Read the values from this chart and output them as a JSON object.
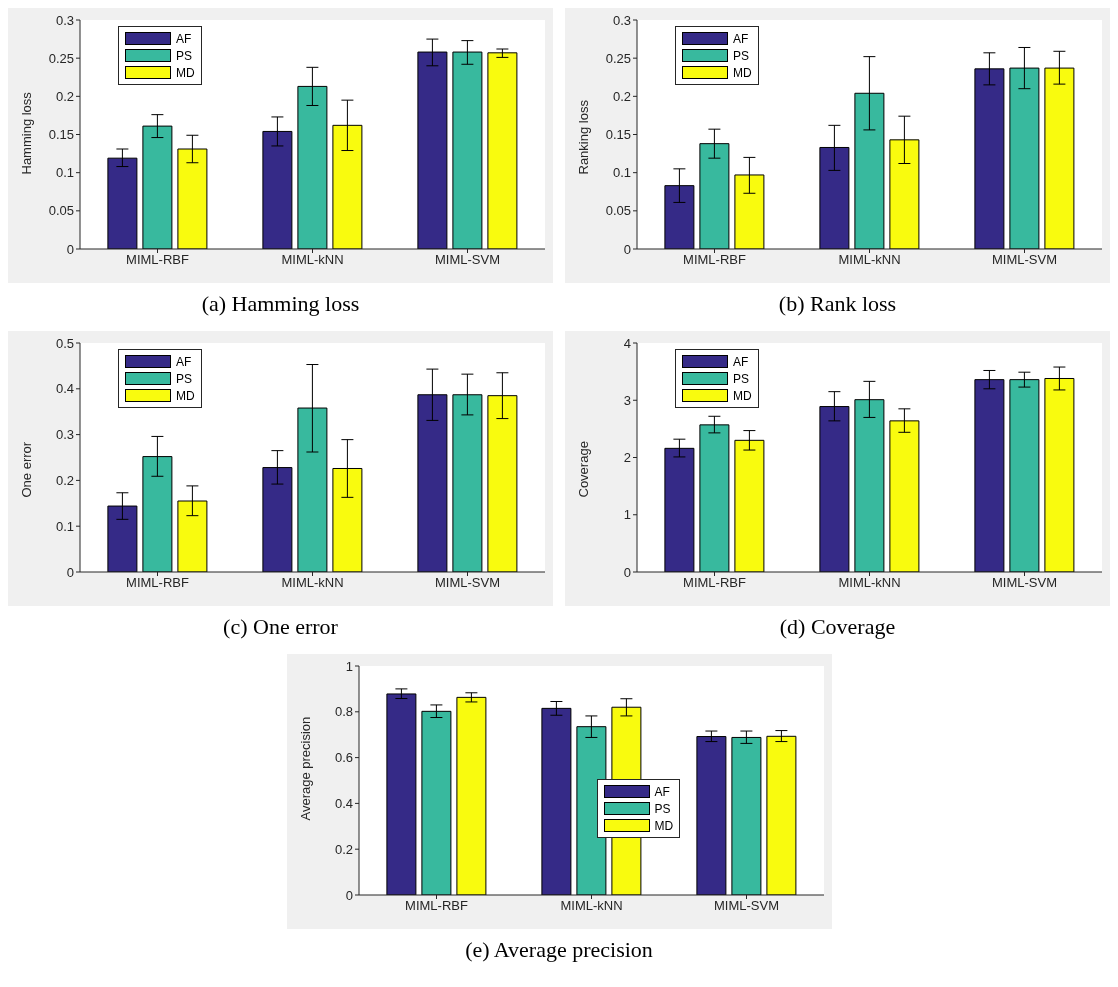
{
  "chart_data": [
    {
      "type": "bar",
      "title": "(a) Hamming loss",
      "ylabel": "Hamming loss",
      "categories": [
        "MIML-RBF",
        "MIML-kNN",
        "MIML-SVM"
      ],
      "ylim": [
        0,
        0.3
      ],
      "yticks": [
        0,
        0.05,
        0.1,
        0.15,
        0.2,
        0.25,
        0.3
      ],
      "legend": "top left",
      "series": [
        {
          "name": "AF",
          "color": "#352a87",
          "values": [
            0.119,
            0.154,
            0.258
          ],
          "errors": [
            [
              0.108,
              0.131
            ],
            [
              0.135,
              0.173
            ],
            [
              0.24,
              0.275
            ]
          ]
        },
        {
          "name": "PS",
          "color": "#38b99e",
          "values": [
            0.161,
            0.213,
            0.258
          ],
          "errors": [
            [
              0.146,
              0.176
            ],
            [
              0.188,
              0.238
            ],
            [
              0.242,
              0.273
            ]
          ]
        },
        {
          "name": "MD",
          "color": "#f9fb0e",
          "values": [
            0.131,
            0.162,
            0.257
          ],
          "errors": [
            [
              0.113,
              0.149
            ],
            [
              0.129,
              0.195
            ],
            [
              0.251,
              0.262
            ]
          ]
        }
      ]
    },
    {
      "type": "bar",
      "title": "(b) Rank loss",
      "ylabel": "Ranking loss",
      "categories": [
        "MIML-RBF",
        "MIML-kNN",
        "MIML-SVM"
      ],
      "ylim": [
        0,
        0.3
      ],
      "yticks": [
        0,
        0.05,
        0.1,
        0.15,
        0.2,
        0.25,
        0.3
      ],
      "legend": "top left",
      "series": [
        {
          "name": "AF",
          "color": "#352a87",
          "values": [
            0.083,
            0.133,
            0.236
          ],
          "errors": [
            [
              0.061,
              0.105
            ],
            [
              0.103,
              0.162
            ],
            [
              0.215,
              0.257
            ]
          ]
        },
        {
          "name": "PS",
          "color": "#38b99e",
          "values": [
            0.138,
            0.204,
            0.237
          ],
          "errors": [
            [
              0.119,
              0.157
            ],
            [
              0.156,
              0.252
            ],
            [
              0.21,
              0.264
            ]
          ]
        },
        {
          "name": "MD",
          "color": "#f9fb0e",
          "values": [
            0.097,
            0.143,
            0.237
          ],
          "errors": [
            [
              0.073,
              0.12
            ],
            [
              0.112,
              0.174
            ],
            [
              0.216,
              0.259
            ]
          ]
        }
      ]
    },
    {
      "type": "bar",
      "title": "(c) One error",
      "ylabel": "One error",
      "categories": [
        "MIML-RBF",
        "MIML-kNN",
        "MIML-SVM"
      ],
      "ylim": [
        0,
        0.5
      ],
      "yticks": [
        0,
        0.1,
        0.2,
        0.3,
        0.4,
        0.5
      ],
      "legend": "top left",
      "series": [
        {
          "name": "AF",
          "color": "#352a87",
          "values": [
            0.144,
            0.228,
            0.387
          ],
          "errors": [
            [
              0.115,
              0.173
            ],
            [
              0.192,
              0.265
            ],
            [
              0.331,
              0.443
            ]
          ]
        },
        {
          "name": "PS",
          "color": "#38b99e",
          "values": [
            0.252,
            0.358,
            0.387
          ],
          "errors": [
            [
              0.209,
              0.296
            ],
            [
              0.262,
              0.453
            ],
            [
              0.343,
              0.432
            ]
          ]
        },
        {
          "name": "MD",
          "color": "#f9fb0e",
          "values": [
            0.155,
            0.226,
            0.385
          ],
          "errors": [
            [
              0.123,
              0.188
            ],
            [
              0.163,
              0.289
            ],
            [
              0.335,
              0.435
            ]
          ]
        }
      ]
    },
    {
      "type": "bar",
      "title": "(d) Coverage",
      "ylabel": "Coverage",
      "categories": [
        "MIML-RBF",
        "MIML-kNN",
        "MIML-SVM"
      ],
      "ylim": [
        0,
        4
      ],
      "yticks": [
        0,
        1,
        2,
        3,
        4
      ],
      "legend": "top left",
      "series": [
        {
          "name": "AF",
          "color": "#352a87",
          "values": [
            2.16,
            2.89,
            3.36
          ],
          "errors": [
            [
              2.01,
              2.32
            ],
            [
              2.64,
              3.15
            ],
            [
              3.2,
              3.52
            ]
          ]
        },
        {
          "name": "PS",
          "color": "#38b99e",
          "values": [
            2.57,
            3.01,
            3.36
          ],
          "errors": [
            [
              2.43,
              2.72
            ],
            [
              2.7,
              3.33
            ],
            [
              3.23,
              3.49
            ]
          ]
        },
        {
          "name": "MD",
          "color": "#f9fb0e",
          "values": [
            2.3,
            2.64,
            3.38
          ],
          "errors": [
            [
              2.13,
              2.47
            ],
            [
              2.44,
              2.85
            ],
            [
              3.18,
              3.58
            ]
          ]
        }
      ]
    },
    {
      "type": "bar",
      "title": "(e) Average precision",
      "ylabel": "Average precision",
      "categories": [
        "MIML-RBF",
        "MIML-kNN",
        "MIML-SVM"
      ],
      "ylim": [
        0,
        1
      ],
      "yticks": [
        0,
        0.2,
        0.4,
        0.6,
        0.8,
        1
      ],
      "legend": "center right",
      "series": [
        {
          "name": "AF",
          "color": "#352a87",
          "values": [
            0.878,
            0.815,
            0.692
          ],
          "errors": [
            [
              0.858,
              0.9
            ],
            [
              0.785,
              0.845
            ],
            [
              0.67,
              0.716
            ]
          ]
        },
        {
          "name": "PS",
          "color": "#38b99e",
          "values": [
            0.802,
            0.735,
            0.688
          ],
          "errors": [
            [
              0.775,
              0.83
            ],
            [
              0.688,
              0.782
            ],
            [
              0.662,
              0.716
            ]
          ]
        },
        {
          "name": "MD",
          "color": "#f9fb0e",
          "values": [
            0.863,
            0.82,
            0.693
          ],
          "errors": [
            [
              0.843,
              0.883
            ],
            [
              0.782,
              0.857
            ],
            [
              0.67,
              0.718
            ]
          ]
        }
      ]
    }
  ]
}
